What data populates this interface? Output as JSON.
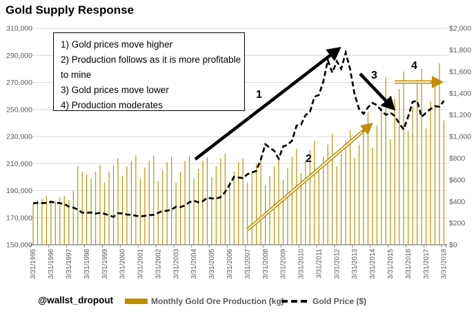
{
  "title": "Gold Supply Response",
  "footer": {
    "handle": "@wallst_dropout"
  },
  "legend": {
    "production_label": "Monthly Gold Ore Production (kg)",
    "price_label": "Gold Price ($)"
  },
  "annotation_box": {
    "lines": [
      "1) Gold prices move higher",
      "2) Production follows as it is more profitable to mine",
      "3) Gold prices move lower",
      "4) Production moderates"
    ]
  },
  "annotation_markers": [
    "1",
    "2",
    "3",
    "4"
  ],
  "colors": {
    "bar_gold": "#BF8F00",
    "price_line": "#000000",
    "gridline": "#D9D9D9",
    "axis_text": "#595959",
    "axis_line": "#7F7F7F",
    "arrow_black": "#000000",
    "arrow_gold": "#BF8F00"
  },
  "chart_data": {
    "type": "combo",
    "x": {
      "start": "3/31/1995",
      "end": "3/31/2018",
      "interval": "quarterly",
      "tick_labels": [
        "3/31/1995",
        "3/31/1996",
        "3/31/1997",
        "3/31/1998",
        "3/31/1999",
        "3/31/2000",
        "3/31/2001",
        "3/31/2002",
        "3/31/2003",
        "3/31/2004",
        "3/31/2005",
        "3/31/2006",
        "3/31/2007",
        "3/31/2008",
        "3/31/2009",
        "3/31/2010",
        "3/31/2011",
        "3/31/2012",
        "3/31/2013",
        "3/31/2014",
        "3/31/2015",
        "3/31/2016",
        "3/31/2017",
        "3/31/2018"
      ]
    },
    "left_axis": {
      "title": "Monthly Gold Ore Production (kg)",
      "min": 150000,
      "max": 310000,
      "step": 20000,
      "tick_labels": [
        "310,000",
        "290,000",
        "270,000",
        "250,000",
        "230,000",
        "210,000",
        "190,000",
        "170,000",
        "150,000"
      ]
    },
    "right_axis": {
      "title": "Gold Price ($)",
      "min": 0,
      "max": 2000,
      "step": 200,
      "tick_labels": [
        "$2,000",
        "$1,800",
        "$1,600",
        "$1,400",
        "$1,200",
        "$1,000",
        "$800",
        "$600",
        "$400",
        "$200",
        "$0"
      ]
    },
    "grid": "horizontal-only",
    "legend_position": "bottom",
    "series": [
      {
        "name": "Monthly Gold Ore Production (kg)",
        "type": "bar",
        "axis": "left",
        "unit": "kg",
        "values": [
          180000,
          183000,
          184000,
          186000,
          183000,
          182000,
          185000,
          186000,
          183000,
          190000,
          208000,
          204000,
          202000,
          199000,
          204000,
          209000,
          196000,
          204000,
          209000,
          214000,
          201000,
          208000,
          212000,
          216000,
          199000,
          207000,
          212000,
          216000,
          197000,
          205000,
          211000,
          215000,
          196000,
          204000,
          212000,
          216000,
          199000,
          206000,
          212000,
          215000,
          200000,
          208000,
          214000,
          217000,
          197000,
          204000,
          211000,
          214000,
          196000,
          203000,
          210000,
          213000,
          194000,
          201000,
          208000,
          212000,
          198000,
          207000,
          215000,
          221000,
          203000,
          212000,
          220000,
          227000,
          206000,
          215000,
          224000,
          232000,
          208000,
          217000,
          227000,
          235000,
          214000,
          224000,
          236000,
          248000,
          222000,
          238000,
          252000,
          274000,
          228000,
          258000,
          265000,
          278000,
          234000,
          252000,
          272000,
          280000,
          236000,
          256000,
          270000,
          284000,
          242000
        ]
      },
      {
        "name": "Gold Price ($)",
        "type": "line",
        "style": "dashed",
        "axis": "right",
        "unit": "USD",
        "values": [
          382,
          387,
          384,
          387,
          396,
          390,
          385,
          376,
          352,
          343,
          325,
          297,
          294,
          299,
          288,
          294,
          286,
          272,
          258,
          292,
          289,
          279,
          276,
          268,
          262,
          267,
          274,
          277,
          294,
          312,
          314,
          324,
          351,
          347,
          364,
          393,
          406,
          393,
          402,
          435,
          428,
          427,
          440,
          487,
          555,
          628,
          621,
          615,
          652,
          668,
          682,
          790,
          928,
          896,
          868,
          795,
          909,
          923,
          962,
          1100,
          1110,
          1197,
          1228,
          1367,
          1385,
          1507,
          1705,
          1590,
          1695,
          1625,
          1775,
          1620,
          1390,
          1255,
          1210,
          1270,
          1310,
          1290,
          1240,
          1200,
          1220,
          1190,
          1120,
          1065,
          1185,
          1320,
          1330,
          1180,
          1220,
          1255,
          1280,
          1275,
          1330
        ]
      }
    ]
  }
}
